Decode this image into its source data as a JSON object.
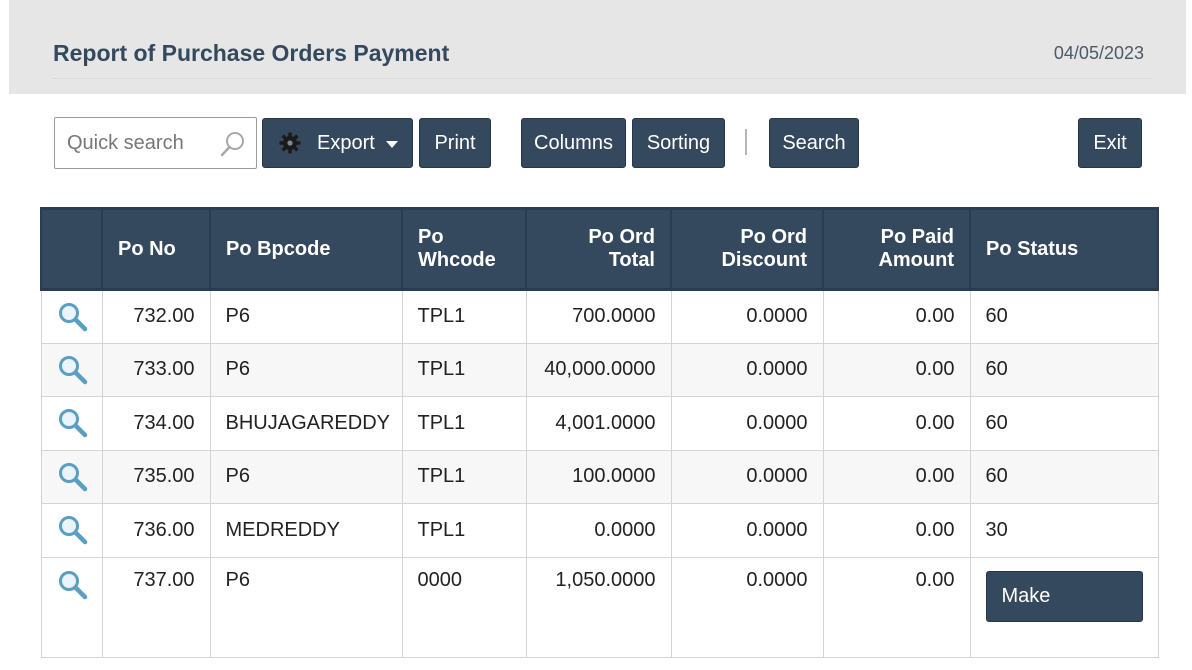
{
  "header": {
    "title": "Report of Purchase Orders Payment",
    "date": "04/05/2023"
  },
  "toolbar": {
    "search_placeholder": "Quick search",
    "export_label": "Export",
    "print_label": "Print",
    "columns_label": "Columns",
    "sorting_label": "Sorting",
    "search_label": "Search",
    "exit_label": "Exit"
  },
  "icons": {
    "search": "magnifier-icon",
    "export": "gear-icon",
    "export_caret": "caret-down-icon",
    "row_view": "zoom-icon"
  },
  "colors": {
    "accent": "#34495e",
    "header_bg": "#e6e6e6",
    "zoom_icon": "#5a9ec4"
  },
  "table": {
    "columns": [
      "",
      "Po No",
      "Po Bpcode",
      "Po\nWhcode",
      "Po Ord\nTotal",
      "Po Ord\nDiscount",
      "Po Paid\nAmount",
      "Po Status"
    ],
    "rows": [
      {
        "po_no": "732.00",
        "bpcode": "P6",
        "whcode": "TPL1",
        "ord_total": "700.0000",
        "ord_discount": "0.0000",
        "paid_amount": "0.00",
        "status": "60"
      },
      {
        "po_no": "733.00",
        "bpcode": "P6",
        "whcode": "TPL1",
        "ord_total": "40,000.0000",
        "ord_discount": "0.0000",
        "paid_amount": "0.00",
        "status": "60"
      },
      {
        "po_no": "734.00",
        "bpcode": "BHUJAGAREDDY",
        "whcode": "TPL1",
        "ord_total": "4,001.0000",
        "ord_discount": "0.0000",
        "paid_amount": "0.00",
        "status": "60"
      },
      {
        "po_no": "735.00",
        "bpcode": "P6",
        "whcode": "TPL1",
        "ord_total": "100.0000",
        "ord_discount": "0.0000",
        "paid_amount": "0.00",
        "status": "60"
      },
      {
        "po_no": "736.00",
        "bpcode": "MEDREDDY",
        "whcode": "TPL1",
        "ord_total": "0.0000",
        "ord_discount": "0.0000",
        "paid_amount": "0.00",
        "status": "30"
      },
      {
        "po_no": "737.00",
        "bpcode": "P6",
        "whcode": "0000",
        "ord_total": "1,050.0000",
        "ord_discount": "0.0000",
        "paid_amount": "0.00",
        "status": "",
        "action_label": "Make Payment"
      }
    ]
  }
}
